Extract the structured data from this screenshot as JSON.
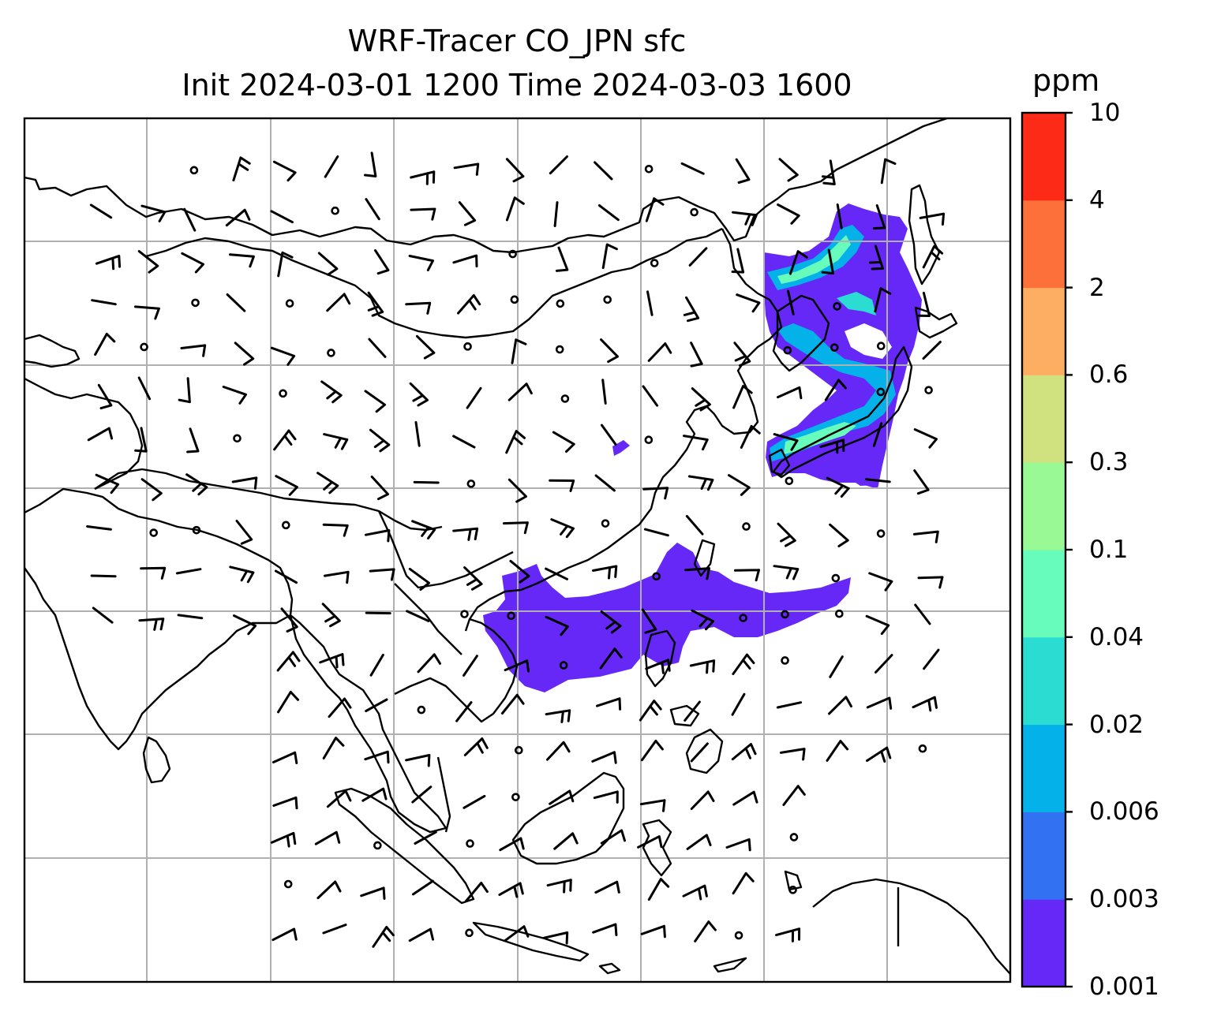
{
  "title": {
    "line1": "WRF-Tracer CO_JPN sfc",
    "line2": "Init 2024-03-01 1200 Time 2024-03-03 1600"
  },
  "colorbar": {
    "unit": "ppm",
    "levels": [
      "0.001",
      "0.003",
      "0.006",
      "0.02",
      "0.04",
      "0.1",
      "0.3",
      "0.6",
      "2",
      "4",
      "10"
    ],
    "colors": [
      "#6528f7",
      "#3272f2",
      "#04b1e8",
      "#2bdcd2",
      "#67fbbc",
      "#99fa95",
      "#d0e180",
      "#feae63",
      "#fe7039",
      "#fe2a18"
    ]
  },
  "plume_color": "#6528f7",
  "plume_colors_high": [
    "#04b1e8",
    "#2bdcd2",
    "#67fbbc"
  ],
  "map": {
    "gridlines": true,
    "features": [
      "coastlines",
      "country-borders",
      "wind-barbs",
      "tracer-concentration"
    ]
  }
}
